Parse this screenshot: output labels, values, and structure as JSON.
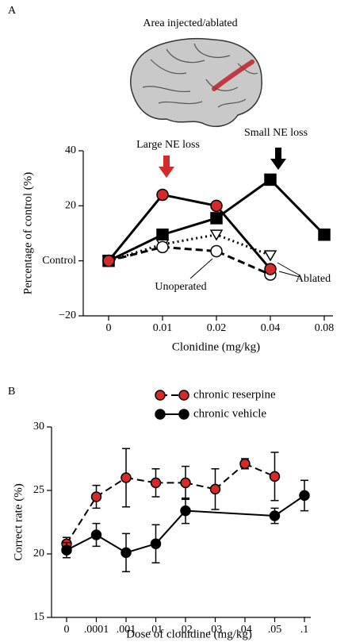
{
  "chart_data": [
    {
      "type": "line",
      "panel_label": "A",
      "illustration_title": "Area injected/ablated",
      "x_label": "Clonidine (mg/kg)",
      "y_label": "Percentage of control (%)",
      "categories": [
        "0",
        "0.01",
        "0.02",
        "0.04",
        "0.08"
      ],
      "ylim": [
        -20,
        40
      ],
      "yticks": [
        {
          "value": -20,
          "label": "−20"
        },
        {
          "value": 0,
          "label": "Control"
        },
        20,
        40
      ],
      "annotations": [
        "Large NE loss",
        "Small NE loss",
        "Unoperated",
        "Ablated"
      ],
      "series": [
        {
          "color": "#000000",
          "marker": "square",
          "marker_color": "#000000",
          "dash": "solid",
          "values": [
            0,
            9.5,
            15.5,
            29.5,
            9.5
          ]
        },
        {
          "color": "#000000",
          "marker": "triangle-down",
          "marker_color": "#ffffff",
          "dash": "dotted",
          "values": [
            0,
            6,
            9.5,
            2,
            null
          ]
        },
        {
          "color": "#000000",
          "marker": "circle",
          "marker_color": "#ffffff",
          "dash": "dashed",
          "values": [
            0,
            5,
            3.5,
            -5,
            null
          ]
        },
        {
          "color": "#000000",
          "marker": "circle",
          "marker_color": "#d42a2a",
          "dash": "solid",
          "values": [
            0,
            24,
            20,
            -3,
            null
          ]
        }
      ]
    },
    {
      "type": "errorbar",
      "panel_label": "B",
      "x_label": "Dose of clonidine (mg/kg)",
      "y_label": "Correct rate (%)",
      "categories": [
        "0",
        ".0001",
        ".001",
        ".01",
        ".02",
        ".03",
        ".04",
        ".05",
        ".1"
      ],
      "ylim": [
        15,
        30
      ],
      "yticks": [
        15,
        20,
        25,
        30
      ],
      "series": [
        {
          "name": "chronic reserpine",
          "color": "#000000",
          "marker_color": "#d42a2a",
          "dash": "dashed",
          "values": [
            20.8,
            24.5,
            26.0,
            25.6,
            25.6,
            25.1,
            27.1,
            26.1,
            null
          ],
          "errors": [
            0.5,
            0.9,
            2.3,
            1.1,
            1.3,
            1.6,
            0.4,
            1.9,
            null
          ]
        },
        {
          "name": "chronic vehicle",
          "color": "#000000",
          "marker_color": "#000000",
          "dash": "solid",
          "values": [
            20.3,
            21.5,
            20.1,
            20.8,
            23.4,
            null,
            null,
            23.0,
            24.6
          ],
          "errors": [
            0.6,
            0.9,
            1.5,
            1.5,
            1.0,
            null,
            null,
            0.6,
            1.2
          ]
        }
      ]
    }
  ]
}
